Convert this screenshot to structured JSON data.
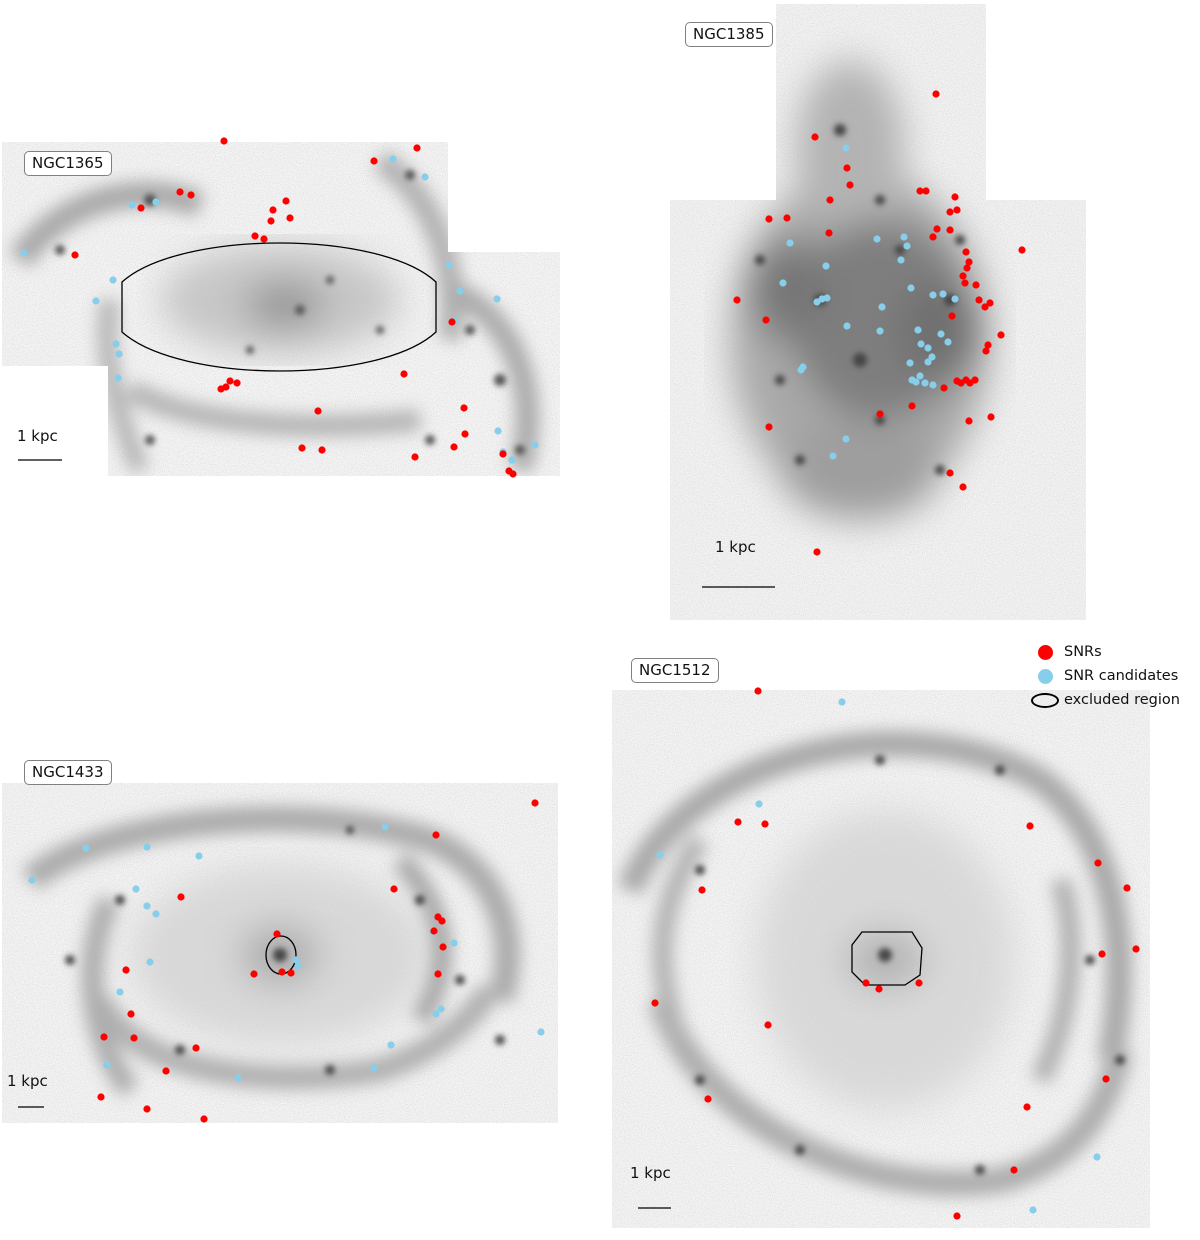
{
  "colors": {
    "snr": "#ff0000",
    "candidate": "#87ceeb",
    "excluded": "#000000",
    "background": "#ffffff"
  },
  "panels": [
    {
      "name": "NGC1365",
      "scale_label": "1 kpc"
    },
    {
      "name": "NGC1385",
      "scale_label": "1 kpc"
    },
    {
      "name": "NGC1433",
      "scale_label": "1 kpc"
    },
    {
      "name": "NGC1512",
      "scale_label": "1 kpc"
    }
  ],
  "legend": {
    "snr": "SNRs",
    "candidate": "SNR candidates",
    "excluded": "excluded region"
  }
}
